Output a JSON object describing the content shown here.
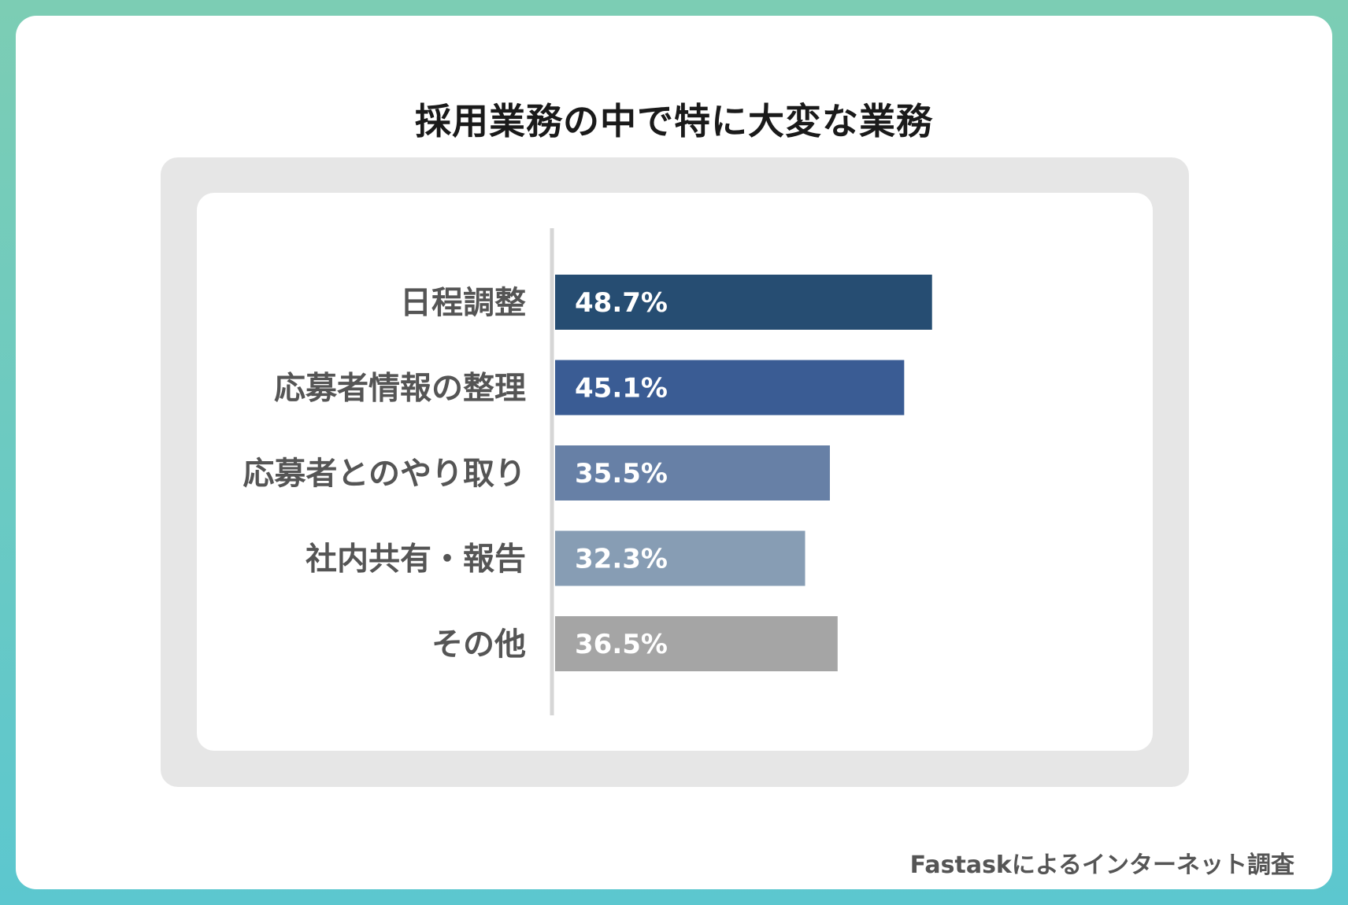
{
  "title": "採用業務の中で特に大変な業務",
  "source": "Fastaskによるインターネット調査",
  "chart_data": {
    "type": "bar",
    "orientation": "horizontal",
    "categories": [
      "日程調整",
      "応募者情報の整理",
      "応募者とのやり取り",
      "社内共有・報告",
      "その他"
    ],
    "values": [
      48.7,
      45.1,
      35.5,
      32.3,
      36.5
    ],
    "value_labels": [
      "48.7%",
      "45.1%",
      "35.5%",
      "32.3%",
      "36.5%"
    ],
    "colors": [
      "#264d72",
      "#3a5c94",
      "#6780a6",
      "#879db4",
      "#a5a5a5"
    ],
    "axis_color": "#d6d6d6",
    "label_color": "#555555",
    "value_label_color": "#ffffff",
    "xlim": [
      0,
      100
    ],
    "grid": false,
    "legend": "none"
  }
}
